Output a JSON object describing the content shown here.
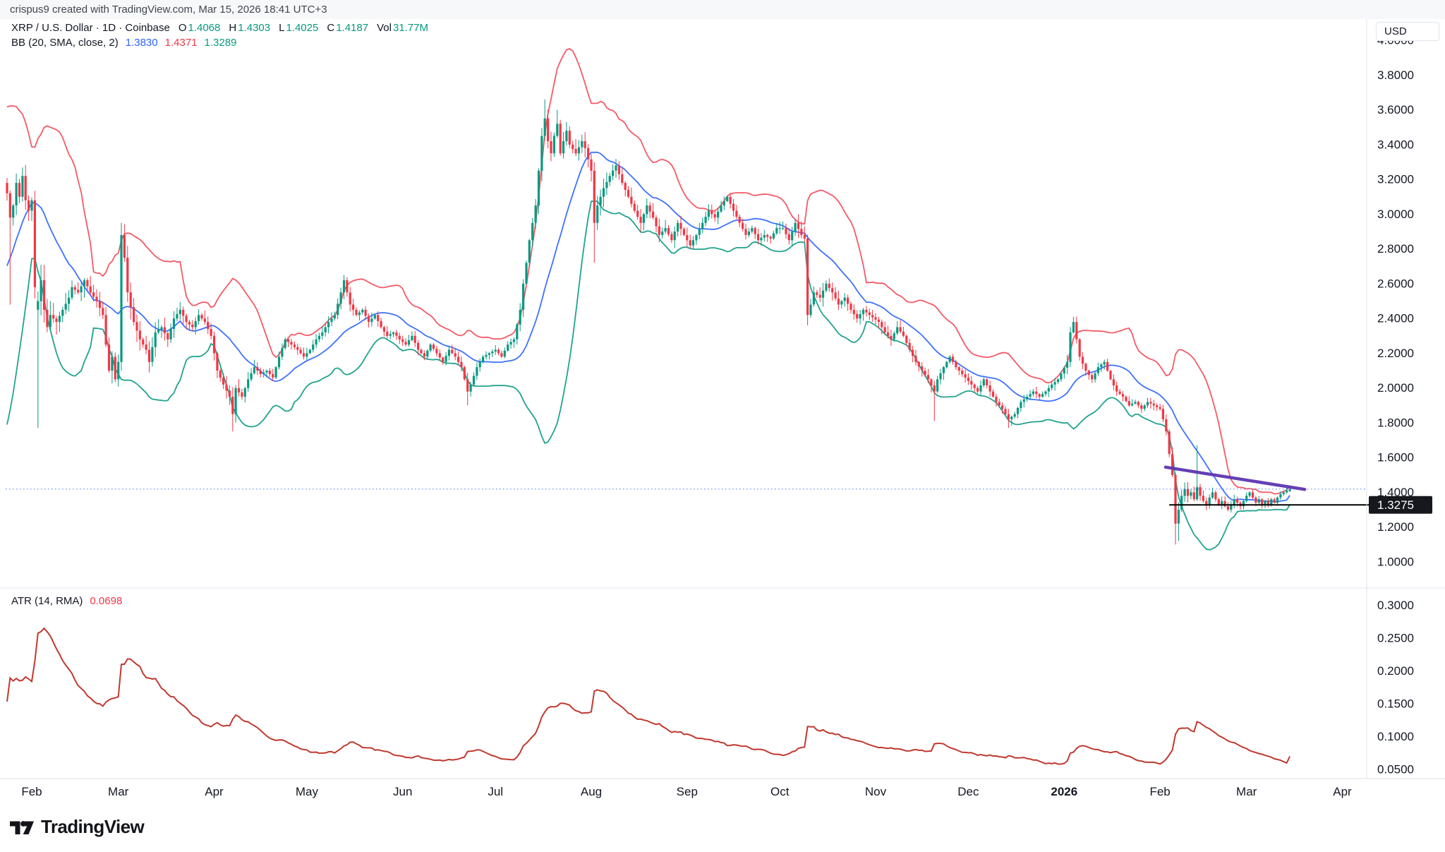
{
  "attribution": {
    "text": "crispus9 created with TradingView.com, Mar 15, 2026 18:41 UTC+3"
  },
  "legend": {
    "symbol": "XRP / U.S. Dollar · 1D · Coinbase",
    "o_label": "O",
    "o": "1.4068",
    "h_label": "H",
    "h": "1.4303",
    "l_label": "L",
    "l": "1.4025",
    "c_label": "C",
    "c": "1.4187",
    "vol_label": "Vol",
    "vol": "31.77M"
  },
  "bb_legend": {
    "name": "BB (20, SMA, close, 2)",
    "basis": "1.3830",
    "upper": "1.4371",
    "lower": "1.3289"
  },
  "atr_legend": {
    "name": "ATR (14, RMA)",
    "value": "0.0698"
  },
  "currency": "USD",
  "logo_text": "TradingView",
  "chart_data": {
    "type": "candlestick",
    "symbol": "XRP / U.S. Dollar",
    "interval": "1D",
    "exchange": "Coinbase",
    "last_candle": {
      "open": 1.4068,
      "high": 1.4303,
      "low": 1.4025,
      "close": 1.4187,
      "volume": "31.77M"
    },
    "indicators": {
      "bollinger": {
        "length": 20,
        "source": "close",
        "mult": 2,
        "basis": 1.383,
        "upper": 1.4371,
        "lower": 1.3289
      },
      "atr": {
        "length": 14,
        "smoothing": "RMA",
        "value": 0.0698
      }
    },
    "price_axis": {
      "ticks": [
        "4.0000",
        "3.8000",
        "3.6000",
        "3.4000",
        "3.2000",
        "3.0000",
        "2.8000",
        "2.6000",
        "2.4000",
        "2.2000",
        "2.0000",
        "1.8000",
        "1.6000",
        "1.4000",
        "1.2000",
        "1.0000"
      ],
      "marked_price": "1.3275",
      "last_price": 1.4187
    },
    "atr_axis": {
      "ticks": [
        "0.3000",
        "0.2500",
        "0.2000",
        "0.1500",
        "0.1000",
        "0.0500"
      ]
    },
    "time_axis": [
      {
        "t": "Feb",
        "d": 0
      },
      {
        "t": "Mar",
        "d": 28
      },
      {
        "t": "Apr",
        "d": 59
      },
      {
        "t": "May",
        "d": 89
      },
      {
        "t": "Jun",
        "d": 120
      },
      {
        "t": "Jul",
        "d": 150
      },
      {
        "t": "Aug",
        "d": 181
      },
      {
        "t": "Sep",
        "d": 212
      },
      {
        "t": "Oct",
        "d": 242
      },
      {
        "t": "Nov",
        "d": 273
      },
      {
        "t": "Dec",
        "d": 303
      },
      {
        "t": "2026",
        "d": 334,
        "bold": true
      },
      {
        "t": "Feb",
        "d": 365
      },
      {
        "t": "Mar",
        "d": 393
      },
      {
        "t": "Apr",
        "d": 424
      }
    ],
    "close_anchors": [
      [
        -28,
        2.1
      ],
      [
        -25,
        2.05
      ],
      [
        -22,
        2.25
      ],
      [
        -20,
        2.4
      ],
      [
        -18,
        2.75
      ],
      [
        -16,
        3.1
      ],
      [
        -15,
        3.3
      ],
      [
        -13,
        3.15
      ],
      [
        -11,
        3.05
      ],
      [
        -9,
        3.18
      ],
      [
        -8,
        3.12
      ],
      [
        -7,
        2.98
      ],
      [
        -6,
        3.05
      ],
      [
        -5,
        3.18
      ],
      [
        -4,
        3.1
      ],
      [
        -3,
        3.22
      ],
      [
        -2,
        3.08
      ],
      [
        -1,
        3.02
      ],
      [
        0,
        3.08
      ],
      [
        1,
        2.58
      ],
      [
        2,
        2.5
      ],
      [
        3,
        2.62
      ],
      [
        4,
        2.45
      ],
      [
        5,
        2.35
      ],
      [
        6,
        2.42
      ],
      [
        8,
        2.38
      ],
      [
        10,
        2.45
      ],
      [
        12,
        2.52
      ],
      [
        13,
        2.58
      ],
      [
        15,
        2.55
      ],
      [
        17,
        2.62
      ],
      [
        19,
        2.55
      ],
      [
        21,
        2.5
      ],
      [
        23,
        2.42
      ],
      [
        24,
        2.25
      ],
      [
        25,
        2.1
      ],
      [
        26,
        2.18
      ],
      [
        27,
        2.05
      ],
      [
        28,
        2.15
      ],
      [
        29,
        2.88
      ],
      [
        30,
        2.75
      ],
      [
        31,
        2.55
      ],
      [
        33,
        2.38
      ],
      [
        35,
        2.28
      ],
      [
        37,
        2.22
      ],
      [
        38,
        2.15
      ],
      [
        40,
        2.32
      ],
      [
        42,
        2.35
      ],
      [
        44,
        2.28
      ],
      [
        46,
        2.4
      ],
      [
        48,
        2.45
      ],
      [
        50,
        2.38
      ],
      [
        52,
        2.35
      ],
      [
        54,
        2.42
      ],
      [
        56,
        2.38
      ],
      [
        58,
        2.3
      ],
      [
        60,
        2.1
      ],
      [
        62,
        2.02
      ],
      [
        64,
        1.95
      ],
      [
        65,
        1.85
      ],
      [
        66,
        2.0
      ],
      [
        68,
        1.95
      ],
      [
        70,
        2.05
      ],
      [
        72,
        2.12
      ],
      [
        74,
        2.08
      ],
      [
        76,
        2.1
      ],
      [
        78,
        2.06
      ],
      [
        80,
        2.18
      ],
      [
        82,
        2.28
      ],
      [
        84,
        2.25
      ],
      [
        86,
        2.22
      ],
      [
        88,
        2.18
      ],
      [
        90,
        2.22
      ],
      [
        92,
        2.28
      ],
      [
        94,
        2.32
      ],
      [
        96,
        2.38
      ],
      [
        98,
        2.42
      ],
      [
        100,
        2.55
      ],
      [
        101,
        2.62
      ],
      [
        103,
        2.48
      ],
      [
        105,
        2.42
      ],
      [
        107,
        2.45
      ],
      [
        109,
        2.38
      ],
      [
        111,
        2.42
      ],
      [
        113,
        2.35
      ],
      [
        115,
        2.3
      ],
      [
        117,
        2.32
      ],
      [
        119,
        2.28
      ],
      [
        121,
        2.25
      ],
      [
        123,
        2.3
      ],
      [
        125,
        2.22
      ],
      [
        127,
        2.18
      ],
      [
        129,
        2.25
      ],
      [
        131,
        2.2
      ],
      [
        133,
        2.15
      ],
      [
        135,
        2.22
      ],
      [
        137,
        2.18
      ],
      [
        139,
        2.12
      ],
      [
        141,
        1.98
      ],
      [
        142,
        2.02
      ],
      [
        144,
        2.12
      ],
      [
        146,
        2.18
      ],
      [
        148,
        2.2
      ],
      [
        150,
        2.22
      ],
      [
        152,
        2.18
      ],
      [
        154,
        2.25
      ],
      [
        156,
        2.28
      ],
      [
        158,
        2.45
      ],
      [
        159,
        2.6
      ],
      [
        160,
        2.72
      ],
      [
        161,
        2.85
      ],
      [
        162,
        2.95
      ],
      [
        163,
        3.05
      ],
      [
        164,
        3.25
      ],
      [
        165,
        3.45
      ],
      [
        166,
        3.55
      ],
      [
        167,
        3.42
      ],
      [
        168,
        3.35
      ],
      [
        169,
        3.45
      ],
      [
        170,
        3.52
      ],
      [
        171,
        3.35
      ],
      [
        172,
        3.42
      ],
      [
        173,
        3.48
      ],
      [
        174,
        3.4
      ],
      [
        176,
        3.35
      ],
      [
        178,
        3.42
      ],
      [
        179,
        3.38
      ],
      [
        181,
        3.25
      ],
      [
        182,
        2.95
      ],
      [
        183,
        3.05
      ],
      [
        185,
        3.15
      ],
      [
        187,
        3.22
      ],
      [
        189,
        3.28
      ],
      [
        191,
        3.18
      ],
      [
        193,
        3.1
      ],
      [
        195,
        3.02
      ],
      [
        197,
        2.95
      ],
      [
        199,
        3.05
      ],
      [
        201,
        2.98
      ],
      [
        203,
        2.88
      ],
      [
        205,
        2.92
      ],
      [
        207,
        2.85
      ],
      [
        209,
        2.95
      ],
      [
        211,
        2.88
      ],
      [
        213,
        2.82
      ],
      [
        215,
        2.88
      ],
      [
        217,
        2.95
      ],
      [
        219,
        3.02
      ],
      [
        221,
        2.98
      ],
      [
        223,
        3.05
      ],
      [
        225,
        3.1
      ],
      [
        227,
        3.02
      ],
      [
        229,
        2.95
      ],
      [
        231,
        2.88
      ],
      [
        233,
        2.92
      ],
      [
        235,
        2.85
      ],
      [
        237,
        2.88
      ],
      [
        239,
        2.86
      ],
      [
        241,
        2.92
      ],
      [
        243,
        2.92
      ],
      [
        245,
        2.85
      ],
      [
        247,
        2.95
      ],
      [
        249,
        2.88
      ],
      [
        250,
        2.86
      ],
      [
        251,
        2.42
      ],
      [
        252,
        2.48
      ],
      [
        253,
        2.55
      ],
      [
        255,
        2.52
      ],
      [
        257,
        2.6
      ],
      [
        259,
        2.55
      ],
      [
        261,
        2.48
      ],
      [
        263,
        2.52
      ],
      [
        265,
        2.45
      ],
      [
        267,
        2.4
      ],
      [
        269,
        2.45
      ],
      [
        271,
        2.42
      ],
      [
        274,
        2.38
      ],
      [
        276,
        2.32
      ],
      [
        278,
        2.28
      ],
      [
        280,
        2.35
      ],
      [
        282,
        2.3
      ],
      [
        284,
        2.22
      ],
      [
        286,
        2.15
      ],
      [
        288,
        2.1
      ],
      [
        290,
        2.05
      ],
      [
        292,
        1.98
      ],
      [
        293,
        2.05
      ],
      [
        295,
        2.12
      ],
      [
        297,
        2.18
      ],
      [
        299,
        2.12
      ],
      [
        301,
        2.08
      ],
      [
        304,
        2.02
      ],
      [
        306,
        1.98
      ],
      [
        308,
        2.05
      ],
      [
        310,
        1.98
      ],
      [
        312,
        1.92
      ],
      [
        314,
        1.88
      ],
      [
        316,
        1.82
      ],
      [
        318,
        1.85
      ],
      [
        320,
        1.92
      ],
      [
        322,
        1.95
      ],
      [
        324,
        1.98
      ],
      [
        326,
        1.95
      ],
      [
        328,
        1.98
      ],
      [
        330,
        2.02
      ],
      [
        332,
        2.05
      ],
      [
        335,
        2.15
      ],
      [
        336,
        2.32
      ],
      [
        337,
        2.38
      ],
      [
        338,
        2.28
      ],
      [
        339,
        2.18
      ],
      [
        341,
        2.1
      ],
      [
        343,
        2.05
      ],
      [
        345,
        2.12
      ],
      [
        347,
        2.15
      ],
      [
        349,
        2.05
      ],
      [
        351,
        1.98
      ],
      [
        353,
        1.95
      ],
      [
        355,
        1.9
      ],
      [
        357,
        1.92
      ],
      [
        359,
        1.88
      ],
      [
        361,
        1.92
      ],
      [
        363,
        1.9
      ],
      [
        365,
        1.88
      ],
      [
        366,
        1.82
      ],
      [
        367,
        1.75
      ],
      [
        368,
        1.62
      ],
      [
        369,
        1.5
      ],
      [
        370,
        1.22
      ],
      [
        371,
        1.3
      ],
      [
        372,
        1.38
      ],
      [
        373,
        1.42
      ],
      [
        374,
        1.38
      ],
      [
        375,
        1.4
      ],
      [
        376,
        1.36
      ],
      [
        377,
        1.43
      ],
      [
        378,
        1.38
      ],
      [
        379,
        1.35
      ],
      [
        380,
        1.33
      ],
      [
        381,
        1.37
      ],
      [
        382,
        1.4
      ],
      [
        383,
        1.36
      ],
      [
        384,
        1.33
      ],
      [
        385,
        1.35
      ],
      [
        386,
        1.32
      ],
      [
        387,
        1.3
      ],
      [
        388,
        1.33
      ],
      [
        389,
        1.36
      ],
      [
        390,
        1.34
      ],
      [
        391,
        1.32
      ],
      [
        392,
        1.35
      ],
      [
        393,
        1.38
      ],
      [
        394,
        1.4
      ],
      [
        395,
        1.37
      ],
      [
        396,
        1.34
      ],
      [
        397,
        1.36
      ],
      [
        398,
        1.33
      ],
      [
        399,
        1.35
      ],
      [
        400,
        1.33
      ],
      [
        401,
        1.36
      ],
      [
        402,
        1.34
      ],
      [
        403,
        1.37
      ],
      [
        404,
        1.39
      ],
      [
        405,
        1.4
      ],
      [
        406,
        1.41
      ],
      [
        407,
        1.4187
      ]
    ],
    "volatility_anchors": [
      [
        -28,
        0.14
      ],
      [
        -8,
        0.2
      ],
      [
        0,
        0.22
      ],
      [
        3,
        0.3
      ],
      [
        8,
        0.24
      ],
      [
        15,
        0.2
      ],
      [
        24,
        0.22
      ],
      [
        29,
        0.26
      ],
      [
        35,
        0.22
      ],
      [
        45,
        0.17
      ],
      [
        60,
        0.16
      ],
      [
        66,
        0.18
      ],
      [
        75,
        0.13
      ],
      [
        90,
        0.11
      ],
      [
        101,
        0.13
      ],
      [
        115,
        0.11
      ],
      [
        125,
        0.1
      ],
      [
        135,
        0.09
      ],
      [
        141,
        0.12
      ],
      [
        148,
        0.09
      ],
      [
        155,
        0.1
      ],
      [
        162,
        0.16
      ],
      [
        166,
        0.2
      ],
      [
        172,
        0.17
      ],
      [
        182,
        0.2
      ],
      [
        190,
        0.17
      ],
      [
        200,
        0.16
      ],
      [
        212,
        0.14
      ],
      [
        225,
        0.12
      ],
      [
        240,
        0.11
      ],
      [
        251,
        0.2
      ],
      [
        256,
        0.16
      ],
      [
        265,
        0.13
      ],
      [
        275,
        0.13
      ],
      [
        285,
        0.12
      ],
      [
        292,
        0.13
      ],
      [
        300,
        0.11
      ],
      [
        310,
        0.11
      ],
      [
        316,
        0.12
      ],
      [
        325,
        0.09
      ],
      [
        336,
        0.13
      ],
      [
        340,
        0.11
      ],
      [
        350,
        0.09
      ],
      [
        360,
        0.085
      ],
      [
        366,
        0.1
      ],
      [
        370,
        0.16
      ],
      [
        373,
        0.13
      ],
      [
        377,
        0.12
      ],
      [
        383,
        0.09
      ],
      [
        390,
        0.08
      ],
      [
        398,
        0.075
      ],
      [
        407,
        0.065
      ]
    ],
    "special_candles": {
      "-7": {
        "l": 2.48
      },
      "2": {
        "o": 2.45,
        "l": 1.77
      },
      "29": {
        "h": 2.95
      },
      "65": {
        "l": 1.75
      },
      "101": {
        "h": 2.65
      },
      "141": {
        "l": 1.9
      },
      "166": {
        "h": 3.66
      },
      "170": {
        "h": 3.6
      },
      "182": {
        "l": 2.72
      },
      "251": {
        "l": 2.36
      },
      "292": {
        "l": 1.81
      },
      "316": {
        "l": 1.77
      },
      "337": {
        "h": 2.41
      },
      "370": {
        "l": 1.1
      },
      "371": {
        "l": 1.12
      },
      "377": {
        "h": 1.67
      },
      "407": {
        "o": 1.4068,
        "h": 1.4303,
        "l": 1.4025,
        "c": 1.4187
      }
    },
    "drawings": {
      "trendline": {
        "d1": 366.8,
        "p1": 1.545,
        "d2": 411.8,
        "p2": 1.417
      },
      "support_line": {
        "price": 1.3275,
        "d1": 368,
        "label": "1.3275"
      },
      "last_price_line": {
        "price": 1.4187
      }
    },
    "colors": {
      "up": "#089981",
      "down": "#f23645",
      "bb_basis": "#2962ff",
      "bb_upper": "#f23645",
      "bb_lower": "#089981",
      "atr_line": "#c0392f",
      "trendline": "#5e35b1",
      "support": "#000000",
      "last_price_line": "#2962ff",
      "label_bg": "#16181d",
      "label_fg": "#ffffff",
      "axis_text": "#131722",
      "divider": "#e0e3eb"
    }
  }
}
